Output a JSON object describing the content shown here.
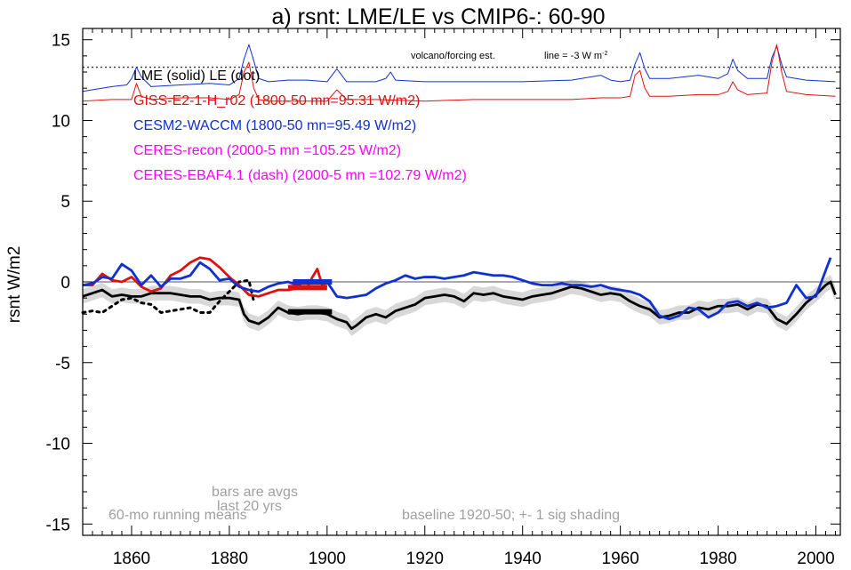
{
  "chart_data": {
    "type": "line",
    "title": "a) rsnt: LME/LE vs CMIP6-: 60-90",
    "ylabel": "rsnt W/m2",
    "xlabel": "",
    "xlim": [
      1850,
      2005
    ],
    "ylim": [
      -15.7,
      15.7
    ],
    "x_ticks": [
      1860,
      1880,
      1900,
      1920,
      1940,
      1960,
      1980,
      2000
    ],
    "x_tick_labels": [
      "1860",
      "1880",
      "1900",
      "1920",
      "1940",
      "1960",
      "1980",
      "2000"
    ],
    "y_ticks": [
      15,
      10,
      5,
      0,
      -5,
      -10,
      -15
    ],
    "y_tick_labels": [
      "15",
      "10",
      "5",
      "0",
      "-5",
      "-10",
      "-15"
    ],
    "colors": {
      "lme": "#000000",
      "giss": "#e01010",
      "cesm": "#1030d0",
      "ceres": "#ff00ff",
      "gray_text": "#a0a0a0",
      "shading": "#d8d8d8"
    },
    "legend": [
      {
        "text": "LME (solid)   LE (dot)",
        "color": "#000000"
      },
      {
        "text": "GISS-E2-1-H_r02 (1800-50 mn=95.31 W/m2)",
        "color": "#e01010"
      },
      {
        "text": "CESM2-WACCM (1800-50 mn=95.49 W/m2)",
        "color": "#1030d0"
      },
      {
        "text": "CERES-recon (2000-5 mn =105.25 W/m2)",
        "color": "#ff00ff"
      },
      {
        "text": "CERES-EBAF4.1 (dash) (2000-5 mn =102.79 W/m2)",
        "color": "#ff00ff"
      }
    ],
    "annotations": {
      "volcano": "volcano/forcing est.",
      "line_note": "line = -3 W m",
      "line_note_sup": "-2",
      "bars_note_1": "bars are avgs",
      "bars_note_2": "last 20 yrs",
      "running": "60-mo running means",
      "baseline": "baseline 1920-50; +- 1 sig shading"
    },
    "reference_lines": [
      {
        "y": 0,
        "style": "solid",
        "color": "#555555"
      },
      {
        "y": 13.3,
        "style": "dotted",
        "color": "#333333"
      }
    ],
    "series": [
      {
        "name": "LME",
        "color": "#000000",
        "style": "solid",
        "x": [
          1850,
          1852,
          1854,
          1856,
          1858,
          1860,
          1862,
          1864,
          1866,
          1868,
          1870,
          1872,
          1874,
          1876,
          1878,
          1880,
          1882,
          1883,
          1884,
          1885,
          1886,
          1888,
          1890,
          1892,
          1894,
          1896,
          1898,
          1900,
          1902,
          1904,
          1905,
          1906,
          1908,
          1910,
          1912,
          1914,
          1916,
          1918,
          1920,
          1922,
          1924,
          1926,
          1928,
          1930,
          1932,
          1934,
          1936,
          1938,
          1940,
          1942,
          1944,
          1946,
          1948,
          1950,
          1952,
          1954,
          1956,
          1958,
          1960,
          1962,
          1964,
          1966,
          1968,
          1970,
          1972,
          1974,
          1976,
          1978,
          1980,
          1982,
          1984,
          1986,
          1988,
          1990,
          1992,
          1994,
          1996,
          1998,
          2000,
          2002,
          2003,
          2004
        ],
        "values": [
          -0.9,
          -0.7,
          -0.5,
          -0.9,
          -0.8,
          -0.9,
          -0.9,
          -0.7,
          -0.7,
          -0.7,
          -0.8,
          -0.9,
          -0.9,
          -1.1,
          -1.0,
          -1.0,
          -1.1,
          -2.0,
          -2.4,
          -2.5,
          -2.6,
          -2.2,
          -1.6,
          -1.9,
          -2.0,
          -1.9,
          -1.9,
          -2.0,
          -2.3,
          -2.5,
          -2.9,
          -2.7,
          -2.2,
          -2.0,
          -2.2,
          -1.8,
          -1.6,
          -1.4,
          -1.0,
          -0.9,
          -0.8,
          -0.9,
          -1.2,
          -0.7,
          -0.8,
          -0.7,
          -0.9,
          -1.0,
          -1.1,
          -0.9,
          -0.8,
          -0.7,
          -0.5,
          -0.3,
          -0.4,
          -0.6,
          -0.8,
          -0.7,
          -0.8,
          -1.2,
          -1.5,
          -1.7,
          -2.2,
          -2.1,
          -1.9,
          -1.9,
          -1.6,
          -1.7,
          -1.5,
          -1.5,
          -1.4,
          -1.7,
          -1.4,
          -1.5,
          -2.3,
          -2.6,
          -2.0,
          -1.3,
          -0.8,
          -0.2,
          0.0,
          -0.8
        ]
      },
      {
        "name": "LE",
        "color": "#000000",
        "style": "dotted",
        "x": [
          1850,
          1852,
          1854,
          1856,
          1858,
          1860,
          1862,
          1864,
          1866,
          1868,
          1870,
          1872,
          1874,
          1876,
          1878,
          1880,
          1882,
          1884,
          1885
        ],
        "values": [
          -1.9,
          -1.8,
          -1.9,
          -1.5,
          -1.1,
          -1.0,
          -1.3,
          -1.4,
          -1.9,
          -1.8,
          -1.7,
          -1.6,
          -1.9,
          -1.9,
          -1.2,
          -0.6,
          0.0,
          0.1,
          -1.2
        ]
      },
      {
        "name": "GISS-E2-1-H_r02",
        "color": "#e01010",
        "style": "solid",
        "x": [
          1850,
          1852,
          1854,
          1856,
          1858,
          1860,
          1862,
          1864,
          1866,
          1868,
          1870,
          1872,
          1874,
          1876,
          1878,
          1880,
          1882,
          1884,
          1886,
          1888,
          1890,
          1892,
          1894,
          1896,
          1897,
          1898,
          1899,
          1900
        ],
        "values": [
          -0.2,
          -0.2,
          0.5,
          0.1,
          0.0,
          0.3,
          -0.3,
          -0.6,
          -0.4,
          0.4,
          0.7,
          1.2,
          1.5,
          1.4,
          0.9,
          0.3,
          -0.2,
          -0.8,
          -0.9,
          -0.7,
          -0.5,
          -0.5,
          -0.4,
          -0.3,
          0.3,
          0.8,
          -0.2,
          -0.3
        ]
      },
      {
        "name": "CESM2-WACCM",
        "color": "#1030d0",
        "style": "solid",
        "x": [
          1850,
          1852,
          1854,
          1856,
          1858,
          1860,
          1862,
          1864,
          1866,
          1868,
          1870,
          1872,
          1874,
          1876,
          1878,
          1880,
          1882,
          1884,
          1886,
          1888,
          1890,
          1892,
          1894,
          1896,
          1898,
          1900,
          1902,
          1904,
          1906,
          1908,
          1910,
          1912,
          1914,
          1916,
          1918,
          1920,
          1922,
          1924,
          1926,
          1928,
          1930,
          1932,
          1934,
          1936,
          1938,
          1940,
          1942,
          1944,
          1946,
          1948,
          1950,
          1952,
          1954,
          1956,
          1958,
          1960,
          1962,
          1964,
          1966,
          1968,
          1970,
          1972,
          1974,
          1976,
          1978,
          1980,
          1982,
          1984,
          1986,
          1988,
          1990,
          1992,
          1994,
          1996,
          1998,
          2000,
          2002,
          2003
        ],
        "values": [
          -0.2,
          -0.1,
          0.3,
          0.2,
          1.1,
          0.7,
          -0.2,
          0.4,
          -0.3,
          0.2,
          0.2,
          0.4,
          1.2,
          0.8,
          0.1,
          0.2,
          -0.3,
          -0.5,
          -0.6,
          -0.3,
          -0.1,
          0.0,
          -0.2,
          0.1,
          0.0,
          0.0,
          -0.9,
          -1.0,
          -0.9,
          -0.8,
          -0.4,
          -0.1,
          0.1,
          0.4,
          0.2,
          0.3,
          0.3,
          0.2,
          0.3,
          0.4,
          0.6,
          0.5,
          0.4,
          0.4,
          0.3,
          0.1,
          -0.1,
          -0.2,
          -0.2,
          -0.1,
          -0.2,
          -0.2,
          -0.3,
          -0.2,
          -0.4,
          -0.5,
          -0.6,
          -0.8,
          -1.2,
          -2.1,
          -2.3,
          -2.1,
          -1.6,
          -1.7,
          -2.2,
          -1.9,
          -1.3,
          -1.2,
          -1.5,
          -1.3,
          -1.6,
          -1.5,
          -1.3,
          -0.2,
          -1.0,
          -0.9,
          0.7,
          1.5
        ]
      },
      {
        "name": "CESM2 volcanic est.",
        "color": "#1030d0",
        "style": "thin",
        "x": [
          1850,
          1856,
          1859,
          1860,
          1861,
          1862,
          1864,
          1870,
          1876,
          1880,
          1882,
          1883,
          1884,
          1885,
          1886,
          1888,
          1892,
          1896,
          1900,
          1901,
          1902,
          1903,
          1904,
          1910,
          1912,
          1913,
          1914,
          1920,
          1930,
          1940,
          1950,
          1956,
          1958,
          1960,
          1962,
          1963,
          1964,
          1965,
          1966,
          1970,
          1976,
          1980,
          1982,
          1983,
          1984,
          1986,
          1990,
          1991,
          1992,
          1993,
          1994,
          1998,
          2004
        ],
        "values": [
          11.8,
          12.1,
          12.2,
          12.6,
          13.3,
          12.7,
          12.1,
          12.2,
          12.3,
          12.2,
          12.6,
          13.8,
          14.7,
          13.7,
          12.6,
          12.4,
          12.5,
          12.5,
          12.4,
          12.8,
          13.2,
          12.8,
          12.4,
          12.4,
          12.6,
          13.0,
          12.5,
          12.4,
          12.4,
          12.4,
          12.5,
          12.8,
          12.5,
          12.4,
          12.5,
          13.5,
          14.2,
          13.2,
          12.6,
          12.6,
          12.8,
          12.6,
          12.9,
          13.8,
          13.1,
          12.6,
          12.6,
          13.9,
          14.6,
          13.5,
          12.7,
          12.5,
          12.4
        ]
      },
      {
        "name": "GISS volcanic est.",
        "color": "#e01010",
        "style": "thin",
        "x": [
          1850,
          1856,
          1860,
          1861,
          1862,
          1864,
          1870,
          1876,
          1880,
          1882,
          1883,
          1884,
          1885,
          1886,
          1888,
          1892,
          1896,
          1900,
          1902,
          1904,
          1910,
          1920,
          1930,
          1940,
          1950,
          1956,
          1960,
          1962,
          1963,
          1964,
          1965,
          1966,
          1970,
          1976,
          1980,
          1982,
          1983,
          1984,
          1986,
          1990,
          1991,
          1992,
          1993,
          1994,
          1998,
          2004
        ],
        "values": [
          11.2,
          11.3,
          11.3,
          12.3,
          11.5,
          11.3,
          11.4,
          11.4,
          11.3,
          11.6,
          13.0,
          13.6,
          12.0,
          11.3,
          11.2,
          11.2,
          11.2,
          11.2,
          11.9,
          11.3,
          11.3,
          11.2,
          11.3,
          11.3,
          11.3,
          11.4,
          11.4,
          11.5,
          12.8,
          13.1,
          12.0,
          11.5,
          11.5,
          11.6,
          11.6,
          11.8,
          12.4,
          11.9,
          11.6,
          11.7,
          13.6,
          14.7,
          13.0,
          11.8,
          11.6,
          11.5
        ]
      }
    ],
    "shading_band": {
      "name": "+- 1 sig",
      "color": "#d8d8d8",
      "x": [
        1850,
        1852,
        1854,
        1856,
        1858,
        1860,
        1862,
        1864,
        1866,
        1868,
        1870,
        1872,
        1874,
        1876,
        1878,
        1880,
        1882,
        1883,
        1884,
        1885,
        1886,
        1888,
        1890,
        1892,
        1894,
        1896,
        1898,
        1900,
        1902,
        1904,
        1905,
        1906,
        1908,
        1910,
        1912,
        1914,
        1916,
        1918,
        1920,
        1922,
        1924,
        1926,
        1928,
        1930,
        1932,
        1934,
        1936,
        1938,
        1940,
        1942,
        1944,
        1946,
        1948,
        1950,
        1952,
        1954,
        1956,
        1958,
        1960,
        1962,
        1964,
        1966,
        1968,
        1970,
        1972,
        1974,
        1976,
        1978,
        1980,
        1982,
        1984,
        1986,
        1988,
        1990,
        1992,
        1994,
        1996,
        1998,
        2000,
        2002,
        2003,
        2004
      ],
      "half_width": 0.45
    },
    "bars": [
      {
        "name": "LME last 20 yrs",
        "color": "#000000",
        "x0": 1892,
        "x1": 1901,
        "y": -1.85
      },
      {
        "name": "GISS last 20 yrs",
        "color": "#e01010",
        "x0": 1892,
        "x1": 1900,
        "y": -0.35
      },
      {
        "name": "CESM last 20 yrs",
        "color": "#1030d0",
        "x0": 1893,
        "x1": 1901,
        "y": 0.0
      }
    ]
  }
}
